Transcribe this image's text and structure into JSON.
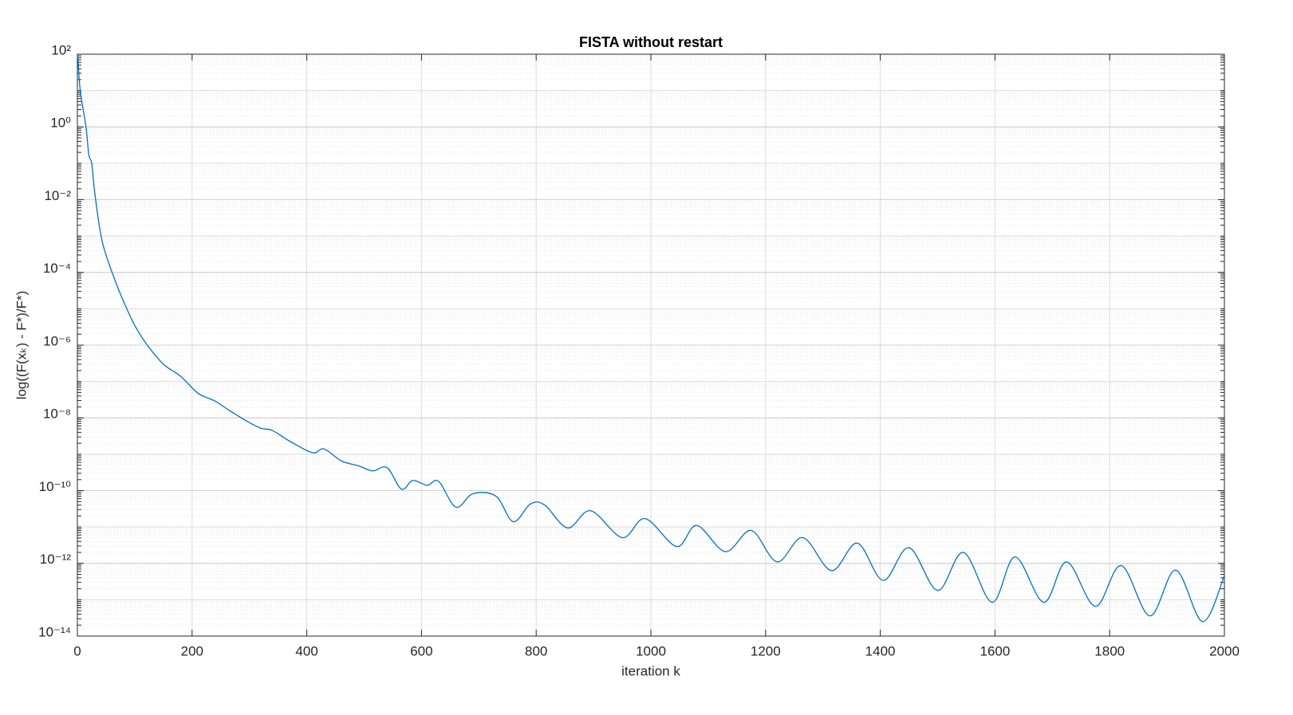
{
  "chart_data": {
    "type": "line",
    "title": "FISTA without restart",
    "x_label": "iteration k",
    "y_label": "log((F(xₖ) - F*)/F*)",
    "log_y": true,
    "grid": true,
    "minor_grid": true,
    "xlim": [
      0,
      2000
    ],
    "ylim": [
      1e-14,
      100
    ],
    "xticks": [
      0,
      200,
      400,
      600,
      800,
      1000,
      1200,
      1400,
      1600,
      1800,
      2000
    ],
    "yticks": [
      {
        "value": 1e-14,
        "label": "10⁻¹⁴"
      },
      {
        "value": 1e-12,
        "label": "10⁻¹²"
      },
      {
        "value": 1e-10,
        "label": "10⁻¹⁰"
      },
      {
        "value": 1e-08,
        "label": "10⁻⁸"
      },
      {
        "value": 1e-06,
        "label": "10⁻⁶"
      },
      {
        "value": 0.0001,
        "label": "10⁻⁴"
      },
      {
        "value": 0.01,
        "label": "10⁻²"
      },
      {
        "value": 1,
        "label": "10⁰"
      },
      {
        "value": 100,
        "label": "10²"
      }
    ],
    "color": "#0072bd",
    "x": [
      1,
      5,
      15,
      20,
      25,
      30,
      40,
      50,
      70,
      85,
      100,
      120,
      150,
      180,
      210,
      240,
      265,
      300,
      320,
      340,
      370,
      410,
      430,
      460,
      490,
      515,
      540,
      565,
      585,
      610,
      630,
      660,
      690,
      730,
      760,
      790,
      815,
      855,
      895,
      950,
      990,
      1045,
      1080,
      1130,
      1175,
      1220,
      1265,
      1315,
      1360,
      1405,
      1450,
      1500,
      1545,
      1595,
      1635,
      1685,
      1725,
      1775,
      1820,
      1870,
      1915,
      1962,
      2000
    ],
    "values": [
      80,
      10,
      1,
      0.17,
      0.1,
      0.017,
      0.0013,
      0.0003,
      4e-05,
      1.1e-05,
      3.5e-06,
      1.1e-06,
      3e-07,
      1.4e-07,
      4.8e-08,
      2.9e-08,
      1.6e-08,
      7.4e-09,
      5.2e-09,
      4.5e-09,
      2.3e-09,
      1.1e-09,
      1.4e-09,
      6.6e-10,
      4.8e-10,
      3.5e-10,
      4.3e-10,
      1.1e-10,
      1.9e-10,
      1.4e-10,
      1.8e-10,
      3.5e-11,
      8.3e-11,
      7e-11,
      1.4e-11,
      4.3e-11,
      4e-11,
      9.4e-12,
      2.8e-11,
      5.1e-12,
      1.7e-11,
      2.9e-12,
      1.1e-11,
      2.1e-12,
      8e-12,
      1.1e-12,
      5.1e-12,
      6.3e-13,
      3.6e-12,
      3.4e-13,
      2.7e-12,
      1.8e-13,
      2e-12,
      8.5e-14,
      1.5e-12,
      8.5e-14,
      1.1e-12,
      6.6e-14,
      8.7e-13,
      3.6e-14,
      6.5e-13,
      2.5e-14,
      4.6e-13
    ]
  }
}
